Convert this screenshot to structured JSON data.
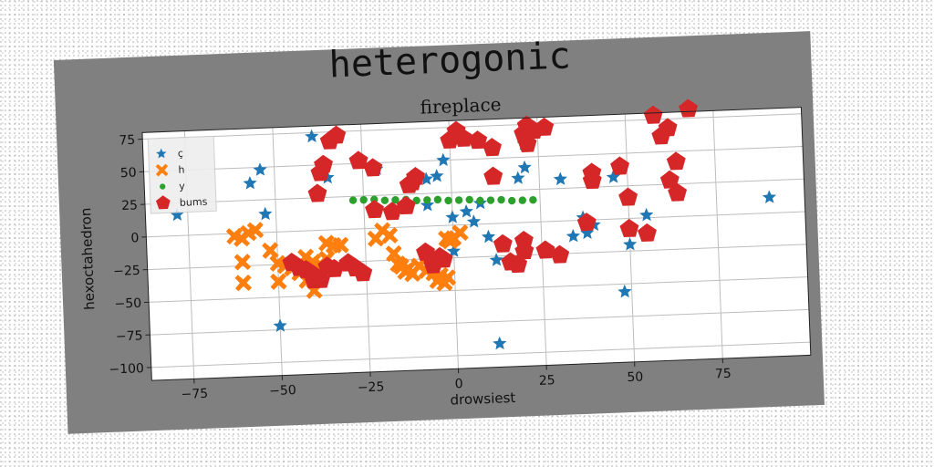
{
  "chart_data": {
    "type": "scatter",
    "title": "heterogonic",
    "subtitle": "fireplace",
    "xlabel": "drowsiest",
    "ylabel": "hexoctahedron",
    "xlim": [
      -87,
      100
    ],
    "ylim": [
      -110,
      80
    ],
    "xticks": [
      -75,
      -50,
      -25,
      0,
      25,
      50,
      75
    ],
    "yticks": [
      75,
      50,
      25,
      0,
      -25,
      -50,
      -75,
      -100
    ],
    "xtick_labels": [
      "−75",
      "−50",
      "−25",
      "0",
      "25",
      "50",
      "75"
    ],
    "ytick_labels": [
      "75",
      "50",
      "25",
      "0",
      "−25",
      "−50",
      "−75",
      "−100"
    ],
    "grid": true,
    "legend_position": "top-left",
    "series": [
      {
        "name": "ç",
        "marker": "star",
        "color": "#1f77b4",
        "points": [
          [
            -78,
            16
          ],
          [
            -57,
            38
          ],
          [
            -54,
            48
          ],
          [
            -53,
            14
          ],
          [
            -50,
            -72
          ],
          [
            -39,
            72
          ],
          [
            -35,
            40
          ],
          [
            -21,
            45
          ],
          [
            -12,
            32
          ],
          [
            -7,
            36
          ],
          [
            -7,
            16
          ],
          [
            -4,
            38
          ],
          [
            -2,
            50
          ],
          [
            0,
            -20
          ],
          [
            0,
            6
          ],
          [
            4,
            10
          ],
          [
            6,
            2
          ],
          [
            8,
            16
          ],
          [
            10,
            -10
          ],
          [
            12,
            -28
          ],
          [
            12,
            -92
          ],
          [
            19,
            34
          ],
          [
            21,
            42
          ],
          [
            21,
            60
          ],
          [
            31,
            32
          ],
          [
            34,
            -12
          ],
          [
            37,
            2
          ],
          [
            38,
            -10
          ],
          [
            40,
            -4
          ],
          [
            46,
            32
          ],
          [
            48,
            -56
          ],
          [
            50,
            -20
          ],
          [
            55,
            2
          ],
          [
            90,
            12
          ]
        ]
      },
      {
        "name": "h",
        "marker": "x",
        "color": "#ff7f0e",
        "points": [
          [
            -62,
            -2
          ],
          [
            -60,
            -4
          ],
          [
            -58,
            0
          ],
          [
            -56,
            2
          ],
          [
            -60,
            -22
          ],
          [
            -60,
            -38
          ],
          [
            -52,
            -14
          ],
          [
            -50,
            -24
          ],
          [
            -50,
            -38
          ],
          [
            -48,
            -26
          ],
          [
            -46,
            -28
          ],
          [
            -44,
            -32
          ],
          [
            -42,
            -20
          ],
          [
            -42,
            -38
          ],
          [
            -40,
            -24
          ],
          [
            -40,
            -46
          ],
          [
            -38,
            -26
          ],
          [
            -38,
            -36
          ],
          [
            -36,
            -22
          ],
          [
            -36,
            -10
          ],
          [
            -34,
            -12
          ],
          [
            -32,
            -12
          ],
          [
            -22,
            -8
          ],
          [
            -20,
            -2
          ],
          [
            -18,
            -6
          ],
          [
            -17,
            -20
          ],
          [
            -16,
            -28
          ],
          [
            -15,
            -30
          ],
          [
            -14,
            -34
          ],
          [
            -13,
            -32
          ],
          [
            -12,
            -36
          ],
          [
            -10,
            -30
          ],
          [
            -8,
            -34
          ],
          [
            -6,
            -36
          ],
          [
            -5,
            -42
          ],
          [
            -4,
            -38
          ],
          [
            -3,
            -44
          ],
          [
            -2,
            -40
          ],
          [
            -2,
            -10
          ],
          [
            -1,
            -12
          ],
          [
            0,
            -10
          ],
          [
            2,
            -6
          ]
        ]
      },
      {
        "name": "y",
        "marker": "dot",
        "color": "#2ca02c",
        "points": [
          [
            -28,
            22
          ],
          [
            -25,
            22
          ],
          [
            -22,
            22
          ],
          [
            -19,
            21
          ],
          [
            -16,
            21
          ],
          [
            -13,
            21
          ],
          [
            -10,
            20
          ],
          [
            -7,
            20
          ],
          [
            -4,
            20
          ],
          [
            -1,
            19
          ],
          [
            2,
            19
          ],
          [
            5,
            19
          ],
          [
            8,
            18
          ],
          [
            11,
            18
          ],
          [
            14,
            18
          ],
          [
            17,
            17
          ],
          [
            20,
            17
          ],
          [
            23,
            17
          ]
        ]
      },
      {
        "name": "bums",
        "marker": "pentagon",
        "color": "#d62728",
        "points": [
          [
            -46,
            -24
          ],
          [
            -44,
            -28
          ],
          [
            -42,
            -30
          ],
          [
            -40,
            -34
          ],
          [
            -40,
            -38
          ],
          [
            -38,
            -38
          ],
          [
            -36,
            -28
          ],
          [
            -34,
            -30
          ],
          [
            -30,
            -26
          ],
          [
            -28,
            -30
          ],
          [
            -26,
            -34
          ],
          [
            -38,
            28
          ],
          [
            -37,
            44
          ],
          [
            -36,
            50
          ],
          [
            -34,
            68
          ],
          [
            -32,
            72
          ],
          [
            -26,
            52
          ],
          [
            -22,
            46
          ],
          [
            -22,
            14
          ],
          [
            -17,
            12
          ],
          [
            -13,
            16
          ],
          [
            -12,
            32
          ],
          [
            -11,
            34
          ],
          [
            -10,
            38
          ],
          [
            -8,
            -20
          ],
          [
            -6,
            -28
          ],
          [
            -6,
            -30
          ],
          [
            -4,
            -24
          ],
          [
            -3,
            -26
          ],
          [
            0,
            65
          ],
          [
            2,
            72
          ],
          [
            4,
            66
          ],
          [
            8,
            64
          ],
          [
            12,
            58
          ],
          [
            12,
            36
          ],
          [
            14,
            -16
          ],
          [
            16,
            -30
          ],
          [
            18,
            -32
          ],
          [
            20,
            -14
          ],
          [
            20,
            -22
          ],
          [
            21,
            68
          ],
          [
            22,
            74
          ],
          [
            22,
            60
          ],
          [
            24,
            70
          ],
          [
            26,
            -22
          ],
          [
            27,
            72
          ],
          [
            30,
            -26
          ],
          [
            38,
            -2
          ],
          [
            40,
            30
          ],
          [
            40,
            36
          ],
          [
            48,
            40
          ],
          [
            50,
            -8
          ],
          [
            50,
            16
          ],
          [
            55,
            -12
          ],
          [
            58,
            78
          ],
          [
            60,
            62
          ],
          [
            62,
            68
          ],
          [
            62,
            28
          ],
          [
            64,
            42
          ],
          [
            64,
            18
          ],
          [
            68,
            82
          ]
        ]
      }
    ]
  }
}
